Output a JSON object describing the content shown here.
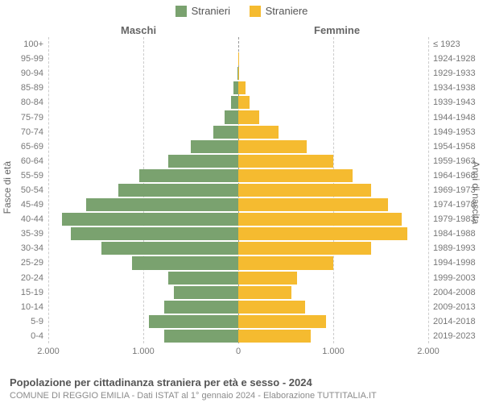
{
  "chart": {
    "type": "population-pyramid",
    "title": "Popolazione per cittadinanza straniera per età e sesso - 2024",
    "subtitle": "COMUNE DI REGGIO EMILIA - Dati ISTAT al 1° gennaio 2024 - Elaborazione TUTTITALIA.IT",
    "legend": {
      "male": "Stranieri",
      "female": "Straniere"
    },
    "headers": {
      "left": "Maschi",
      "right": "Femmine"
    },
    "axis_titles": {
      "left": "Fasce di età",
      "right": "Anni di nascita"
    },
    "colors": {
      "male": "#7aa26f",
      "female": "#f5bb30",
      "grid": "#cccccc",
      "center": "#999999",
      "background": "#ffffff",
      "text": "#555555"
    },
    "x_axis": {
      "max": 2000,
      "ticks": [
        2000,
        1000,
        0,
        1000,
        2000
      ],
      "tick_labels": [
        "2.000",
        "1.000",
        "0",
        "1.000",
        "2.000"
      ]
    },
    "rows": [
      {
        "age": "100+",
        "birth": "≤ 1923",
        "m": 0,
        "f": 0
      },
      {
        "age": "95-99",
        "birth": "1924-1928",
        "m": 0,
        "f": 10
      },
      {
        "age": "90-94",
        "birth": "1929-1933",
        "m": 10,
        "f": 10
      },
      {
        "age": "85-89",
        "birth": "1934-1938",
        "m": 50,
        "f": 80
      },
      {
        "age": "80-84",
        "birth": "1939-1943",
        "m": 80,
        "f": 120
      },
      {
        "age": "75-79",
        "birth": "1944-1948",
        "m": 140,
        "f": 220
      },
      {
        "age": "70-74",
        "birth": "1949-1953",
        "m": 260,
        "f": 420
      },
      {
        "age": "65-69",
        "birth": "1954-1958",
        "m": 500,
        "f": 720
      },
      {
        "age": "60-64",
        "birth": "1959-1963",
        "m": 740,
        "f": 1000
      },
      {
        "age": "55-59",
        "birth": "1964-1968",
        "m": 1040,
        "f": 1200
      },
      {
        "age": "50-54",
        "birth": "1969-1973",
        "m": 1260,
        "f": 1400
      },
      {
        "age": "45-49",
        "birth": "1974-1978",
        "m": 1600,
        "f": 1580
      },
      {
        "age": "40-44",
        "birth": "1979-1983",
        "m": 1860,
        "f": 1720
      },
      {
        "age": "35-39",
        "birth": "1984-1988",
        "m": 1760,
        "f": 1780
      },
      {
        "age": "30-34",
        "birth": "1989-1993",
        "m": 1440,
        "f": 1400
      },
      {
        "age": "25-29",
        "birth": "1994-1998",
        "m": 1120,
        "f": 1000
      },
      {
        "age": "20-24",
        "birth": "1999-2003",
        "m": 740,
        "f": 620
      },
      {
        "age": "15-19",
        "birth": "2004-2008",
        "m": 680,
        "f": 560
      },
      {
        "age": "10-14",
        "birth": "2009-2013",
        "m": 780,
        "f": 700
      },
      {
        "age": "5-9",
        "birth": "2014-2018",
        "m": 940,
        "f": 920
      },
      {
        "age": "0-4",
        "birth": "2019-2023",
        "m": 780,
        "f": 760
      }
    ]
  }
}
